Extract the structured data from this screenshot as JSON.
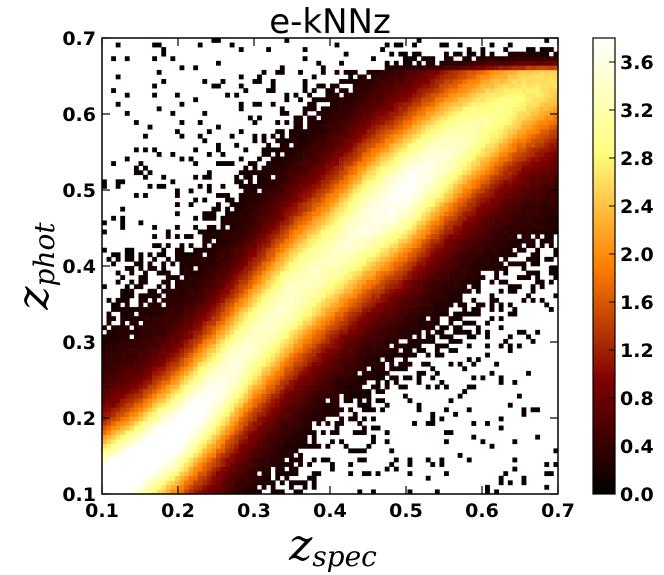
{
  "chart_data": {
    "type": "heatmap",
    "title": "e-kNNz",
    "xlabel": {
      "main": "z",
      "sub": "spec"
    },
    "ylabel": {
      "main": "z",
      "sub": "phot"
    },
    "xlim": [
      0.1,
      0.7
    ],
    "ylim": [
      0.1,
      0.7
    ],
    "x_ticks": [
      "0.1",
      "0.2",
      "0.3",
      "0.4",
      "0.5",
      "0.6",
      "0.7"
    ],
    "y_ticks": [
      "0.1",
      "0.2",
      "0.3",
      "0.4",
      "0.5",
      "0.6",
      "0.7"
    ],
    "colorbar": {
      "range": [
        0.0,
        3.8
      ],
      "ticks": [
        "0.0",
        "0.4",
        "0.8",
        "1.2",
        "1.6",
        "2.0",
        "2.4",
        "2.8",
        "3.2",
        "3.6"
      ],
      "colormap": "afmhot"
    },
    "ridge": {
      "description_points_x": [
        0.1,
        0.15,
        0.2,
        0.25,
        0.3,
        0.35,
        0.4,
        0.45,
        0.5,
        0.55,
        0.6,
        0.65,
        0.7
      ],
      "z_phot": [
        0.11,
        0.14,
        0.18,
        0.235,
        0.3,
        0.36,
        0.41,
        0.46,
        0.5,
        0.545,
        0.585,
        0.62,
        0.645
      ],
      "peak_density": [
        3.4,
        3.3,
        3.1,
        2.8,
        2.5,
        2.5,
        2.4,
        2.7,
        2.9,
        2.6,
        2.2,
        1.9,
        1.7
      ]
    }
  }
}
